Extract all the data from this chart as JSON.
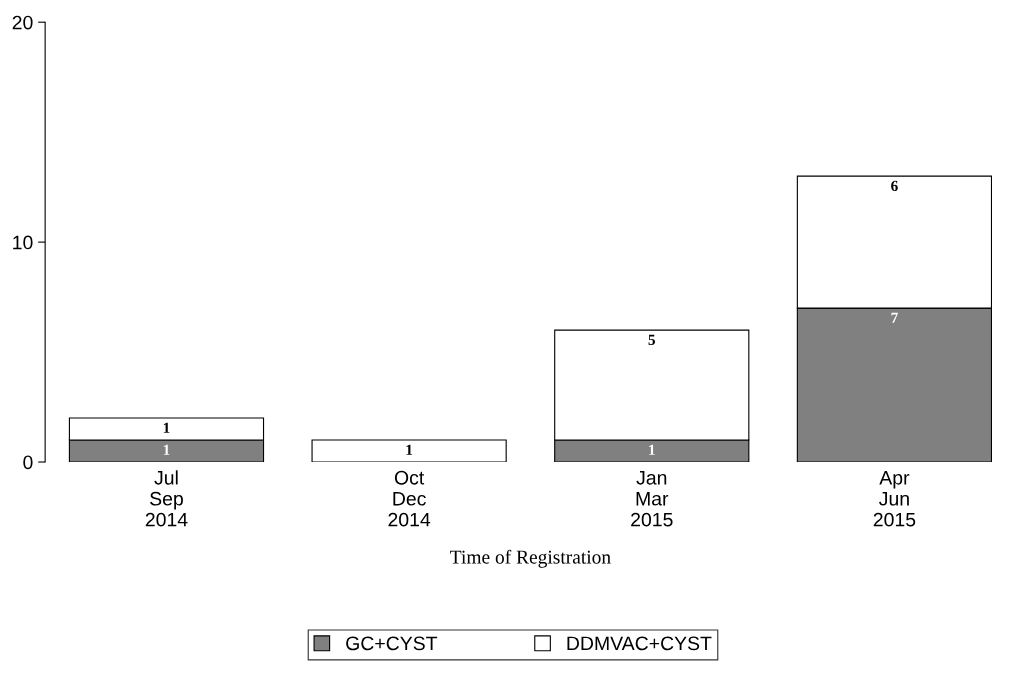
{
  "chart_data": {
    "type": "bar",
    "stacked": true,
    "xlabel": "Time of Registration",
    "categories": [
      "Jul\nSep\n2014",
      "Oct\nDec\n2014",
      "Jan\nMar\n2015",
      "Apr\nJun\n2015"
    ],
    "series": [
      {
        "name": "GC+CYST",
        "color": "#808080",
        "values": [
          1,
          0,
          1,
          7
        ],
        "value_labels": [
          "1",
          null,
          "1",
          "7"
        ]
      },
      {
        "name": "DDMVAC+CYST",
        "color": "#ffffff",
        "values": [
          1,
          1,
          5,
          6
        ],
        "value_labels": [
          "1",
          "1",
          "5",
          "6"
        ]
      }
    ],
    "ylim": [
      0,
      20
    ],
    "yticks": [
      0,
      10,
      20
    ],
    "grid": false,
    "legend": "bottom"
  }
}
